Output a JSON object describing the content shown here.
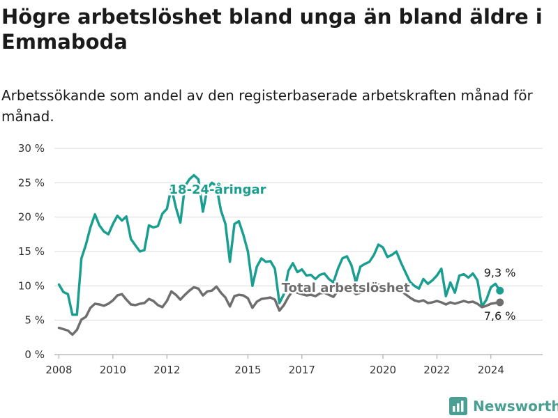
{
  "title": "Högre arbetslöshet bland unga än bland äldre i Emmaboda",
  "subtitle": "Arbetssökande som andel av den registerbaserade arbetskraften månad för månad.",
  "brand": {
    "name": "Newsworthy",
    "icon": "newsworthy-logo-icon",
    "color": "#4a9e92"
  },
  "chart_data": {
    "type": "line",
    "ylim": [
      0,
      30
    ],
    "yticks": [
      "0 %",
      "5 %",
      "10 %",
      "15 %",
      "20 %",
      "25 %",
      "30 %"
    ],
    "xticks": [
      "2008",
      "2010",
      "2012",
      "2015",
      "2017",
      "2020",
      "2022",
      "2024"
    ],
    "xlim": [
      "2007-11",
      "2025-12"
    ],
    "grid": true,
    "series": [
      {
        "name": "18-24-åringar",
        "color": "#1a9e8f",
        "end_label": "9,3 %",
        "points": [
          [
            "2008-01",
            10.2
          ],
          [
            "2008-03",
            9.1
          ],
          [
            "2008-05",
            8.8
          ],
          [
            "2008-07",
            5.8
          ],
          [
            "2008-09",
            5.8
          ],
          [
            "2008-11",
            14.0
          ],
          [
            "2009-01",
            16.0
          ],
          [
            "2009-03",
            18.5
          ],
          [
            "2009-05",
            20.4
          ],
          [
            "2009-07",
            18.8
          ],
          [
            "2009-09",
            17.9
          ],
          [
            "2009-11",
            17.5
          ],
          [
            "2010-01",
            19.0
          ],
          [
            "2010-03",
            20.2
          ],
          [
            "2010-05",
            19.5
          ],
          [
            "2010-07",
            20.1
          ],
          [
            "2010-09",
            16.8
          ],
          [
            "2010-11",
            15.9
          ],
          [
            "2011-01",
            15.0
          ],
          [
            "2011-03",
            15.2
          ],
          [
            "2011-05",
            18.8
          ],
          [
            "2011-07",
            18.5
          ],
          [
            "2011-09",
            18.7
          ],
          [
            "2011-11",
            20.5
          ],
          [
            "2012-01",
            21.2
          ],
          [
            "2012-03",
            24.3
          ],
          [
            "2012-05",
            21.4
          ],
          [
            "2012-07",
            19.2
          ],
          [
            "2012-09",
            24.5
          ],
          [
            "2012-11",
            25.5
          ],
          [
            "2013-01",
            26.1
          ],
          [
            "2013-03",
            25.5
          ],
          [
            "2013-05",
            20.8
          ],
          [
            "2013-07",
            24.2
          ],
          [
            "2013-09",
            25.0
          ],
          [
            "2013-11",
            24.5
          ],
          [
            "2014-01",
            21.0
          ],
          [
            "2014-03",
            19.0
          ],
          [
            "2014-05",
            13.5
          ],
          [
            "2014-07",
            19.0
          ],
          [
            "2014-09",
            19.4
          ],
          [
            "2014-11",
            17.4
          ],
          [
            "2015-01",
            15.0
          ],
          [
            "2015-03",
            10.0
          ],
          [
            "2015-05",
            12.8
          ],
          [
            "2015-07",
            14.0
          ],
          [
            "2015-09",
            13.5
          ],
          [
            "2015-11",
            13.6
          ],
          [
            "2016-01",
            12.5
          ],
          [
            "2016-03",
            7.5
          ],
          [
            "2016-05",
            8.8
          ],
          [
            "2016-07",
            12.2
          ],
          [
            "2016-09",
            13.3
          ],
          [
            "2016-11",
            12.0
          ],
          [
            "2017-01",
            12.4
          ],
          [
            "2017-03",
            11.5
          ],
          [
            "2017-05",
            11.6
          ],
          [
            "2017-07",
            11.0
          ],
          [
            "2017-09",
            11.6
          ],
          [
            "2017-11",
            11.8
          ],
          [
            "2018-01",
            11.0
          ],
          [
            "2018-03",
            10.5
          ],
          [
            "2018-05",
            12.5
          ],
          [
            "2018-07",
            14.0
          ],
          [
            "2018-09",
            14.3
          ],
          [
            "2018-11",
            13.0
          ],
          [
            "2019-01",
            10.5
          ],
          [
            "2019-03",
            12.8
          ],
          [
            "2019-05",
            13.2
          ],
          [
            "2019-07",
            13.5
          ],
          [
            "2019-09",
            14.5
          ],
          [
            "2019-11",
            16.0
          ],
          [
            "2020-01",
            15.6
          ],
          [
            "2020-03",
            14.2
          ],
          [
            "2020-05",
            14.5
          ],
          [
            "2020-07",
            15.0
          ],
          [
            "2020-09",
            13.4
          ],
          [
            "2020-11",
            12.0
          ],
          [
            "2021-01",
            10.6
          ],
          [
            "2021-03",
            10.0
          ],
          [
            "2021-05",
            9.6
          ],
          [
            "2021-07",
            11.0
          ],
          [
            "2021-09",
            10.3
          ],
          [
            "2021-11",
            10.8
          ],
          [
            "2022-01",
            11.5
          ],
          [
            "2022-03",
            12.5
          ],
          [
            "2022-05",
            8.5
          ],
          [
            "2022-07",
            10.5
          ],
          [
            "2022-09",
            9.0
          ],
          [
            "2022-11",
            11.5
          ],
          [
            "2023-01",
            11.7
          ],
          [
            "2023-03",
            11.2
          ],
          [
            "2023-05",
            11.8
          ],
          [
            "2023-07",
            10.8
          ],
          [
            "2023-09",
            7.0
          ],
          [
            "2023-11",
            8.0
          ],
          [
            "2024-01",
            9.8
          ],
          [
            "2024-03",
            10.3
          ],
          [
            "2024-05",
            9.3
          ]
        ]
      },
      {
        "name": "Total arbetslöshet",
        "color": "#6e6e6e",
        "end_label": "7,6 %",
        "points": [
          [
            "2008-01",
            3.9
          ],
          [
            "2008-03",
            3.7
          ],
          [
            "2008-05",
            3.5
          ],
          [
            "2008-07",
            2.9
          ],
          [
            "2008-09",
            3.6
          ],
          [
            "2008-11",
            5.1
          ],
          [
            "2009-01",
            5.5
          ],
          [
            "2009-03",
            6.8
          ],
          [
            "2009-05",
            7.4
          ],
          [
            "2009-07",
            7.3
          ],
          [
            "2009-09",
            7.1
          ],
          [
            "2009-11",
            7.4
          ],
          [
            "2010-01",
            7.9
          ],
          [
            "2010-03",
            8.6
          ],
          [
            "2010-05",
            8.8
          ],
          [
            "2010-07",
            8.0
          ],
          [
            "2010-09",
            7.3
          ],
          [
            "2010-11",
            7.2
          ],
          [
            "2011-01",
            7.4
          ],
          [
            "2011-03",
            7.5
          ],
          [
            "2011-05",
            8.1
          ],
          [
            "2011-07",
            7.8
          ],
          [
            "2011-09",
            7.2
          ],
          [
            "2011-11",
            6.9
          ],
          [
            "2012-01",
            7.8
          ],
          [
            "2012-03",
            9.2
          ],
          [
            "2012-05",
            8.7
          ],
          [
            "2012-07",
            8.0
          ],
          [
            "2012-09",
            8.7
          ],
          [
            "2012-11",
            9.3
          ],
          [
            "2013-01",
            9.8
          ],
          [
            "2013-03",
            9.6
          ],
          [
            "2013-05",
            8.6
          ],
          [
            "2013-07",
            9.2
          ],
          [
            "2013-09",
            9.3
          ],
          [
            "2013-11",
            9.9
          ],
          [
            "2014-01",
            9.0
          ],
          [
            "2014-03",
            8.3
          ],
          [
            "2014-05",
            7.0
          ],
          [
            "2014-07",
            8.5
          ],
          [
            "2014-09",
            8.7
          ],
          [
            "2014-11",
            8.6
          ],
          [
            "2015-01",
            8.2
          ],
          [
            "2015-03",
            6.8
          ],
          [
            "2015-05",
            7.7
          ],
          [
            "2015-07",
            8.1
          ],
          [
            "2015-09",
            8.2
          ],
          [
            "2015-11",
            8.3
          ],
          [
            "2016-01",
            8.0
          ],
          [
            "2016-03",
            6.4
          ],
          [
            "2016-05",
            7.2
          ],
          [
            "2016-07",
            8.4
          ],
          [
            "2016-09",
            9.3
          ],
          [
            "2016-11",
            9.0
          ],
          [
            "2017-01",
            8.8
          ],
          [
            "2017-03",
            8.6
          ],
          [
            "2017-05",
            8.7
          ],
          [
            "2017-07",
            8.5
          ],
          [
            "2017-09",
            8.9
          ],
          [
            "2017-11",
            9.0
          ],
          [
            "2018-01",
            8.7
          ],
          [
            "2018-03",
            8.4
          ],
          [
            "2018-05",
            9.3
          ],
          [
            "2018-07",
            10.0
          ],
          [
            "2018-09",
            9.9
          ],
          [
            "2018-11",
            9.5
          ],
          [
            "2019-01",
            8.8
          ],
          [
            "2019-03",
            9.0
          ],
          [
            "2019-05",
            9.4
          ],
          [
            "2019-07",
            9.6
          ],
          [
            "2019-09",
            9.8
          ],
          [
            "2019-11",
            10.2
          ],
          [
            "2020-01",
            9.9
          ],
          [
            "2020-03",
            9.6
          ],
          [
            "2020-05",
            9.7
          ],
          [
            "2020-07",
            9.8
          ],
          [
            "2020-09",
            9.3
          ],
          [
            "2020-11",
            8.8
          ],
          [
            "2021-01",
            8.3
          ],
          [
            "2021-03",
            7.9
          ],
          [
            "2021-05",
            7.7
          ],
          [
            "2021-07",
            7.9
          ],
          [
            "2021-09",
            7.5
          ],
          [
            "2021-11",
            7.6
          ],
          [
            "2022-01",
            7.8
          ],
          [
            "2022-03",
            7.6
          ],
          [
            "2022-05",
            7.3
          ],
          [
            "2022-07",
            7.6
          ],
          [
            "2022-09",
            7.4
          ],
          [
            "2022-11",
            7.6
          ],
          [
            "2023-01",
            7.8
          ],
          [
            "2023-03",
            7.6
          ],
          [
            "2023-05",
            7.7
          ],
          [
            "2023-07",
            7.4
          ],
          [
            "2023-09",
            6.9
          ],
          [
            "2023-11",
            7.1
          ],
          [
            "2024-01",
            7.4
          ],
          [
            "2024-03",
            7.5
          ],
          [
            "2024-05",
            7.6
          ]
        ]
      }
    ]
  }
}
